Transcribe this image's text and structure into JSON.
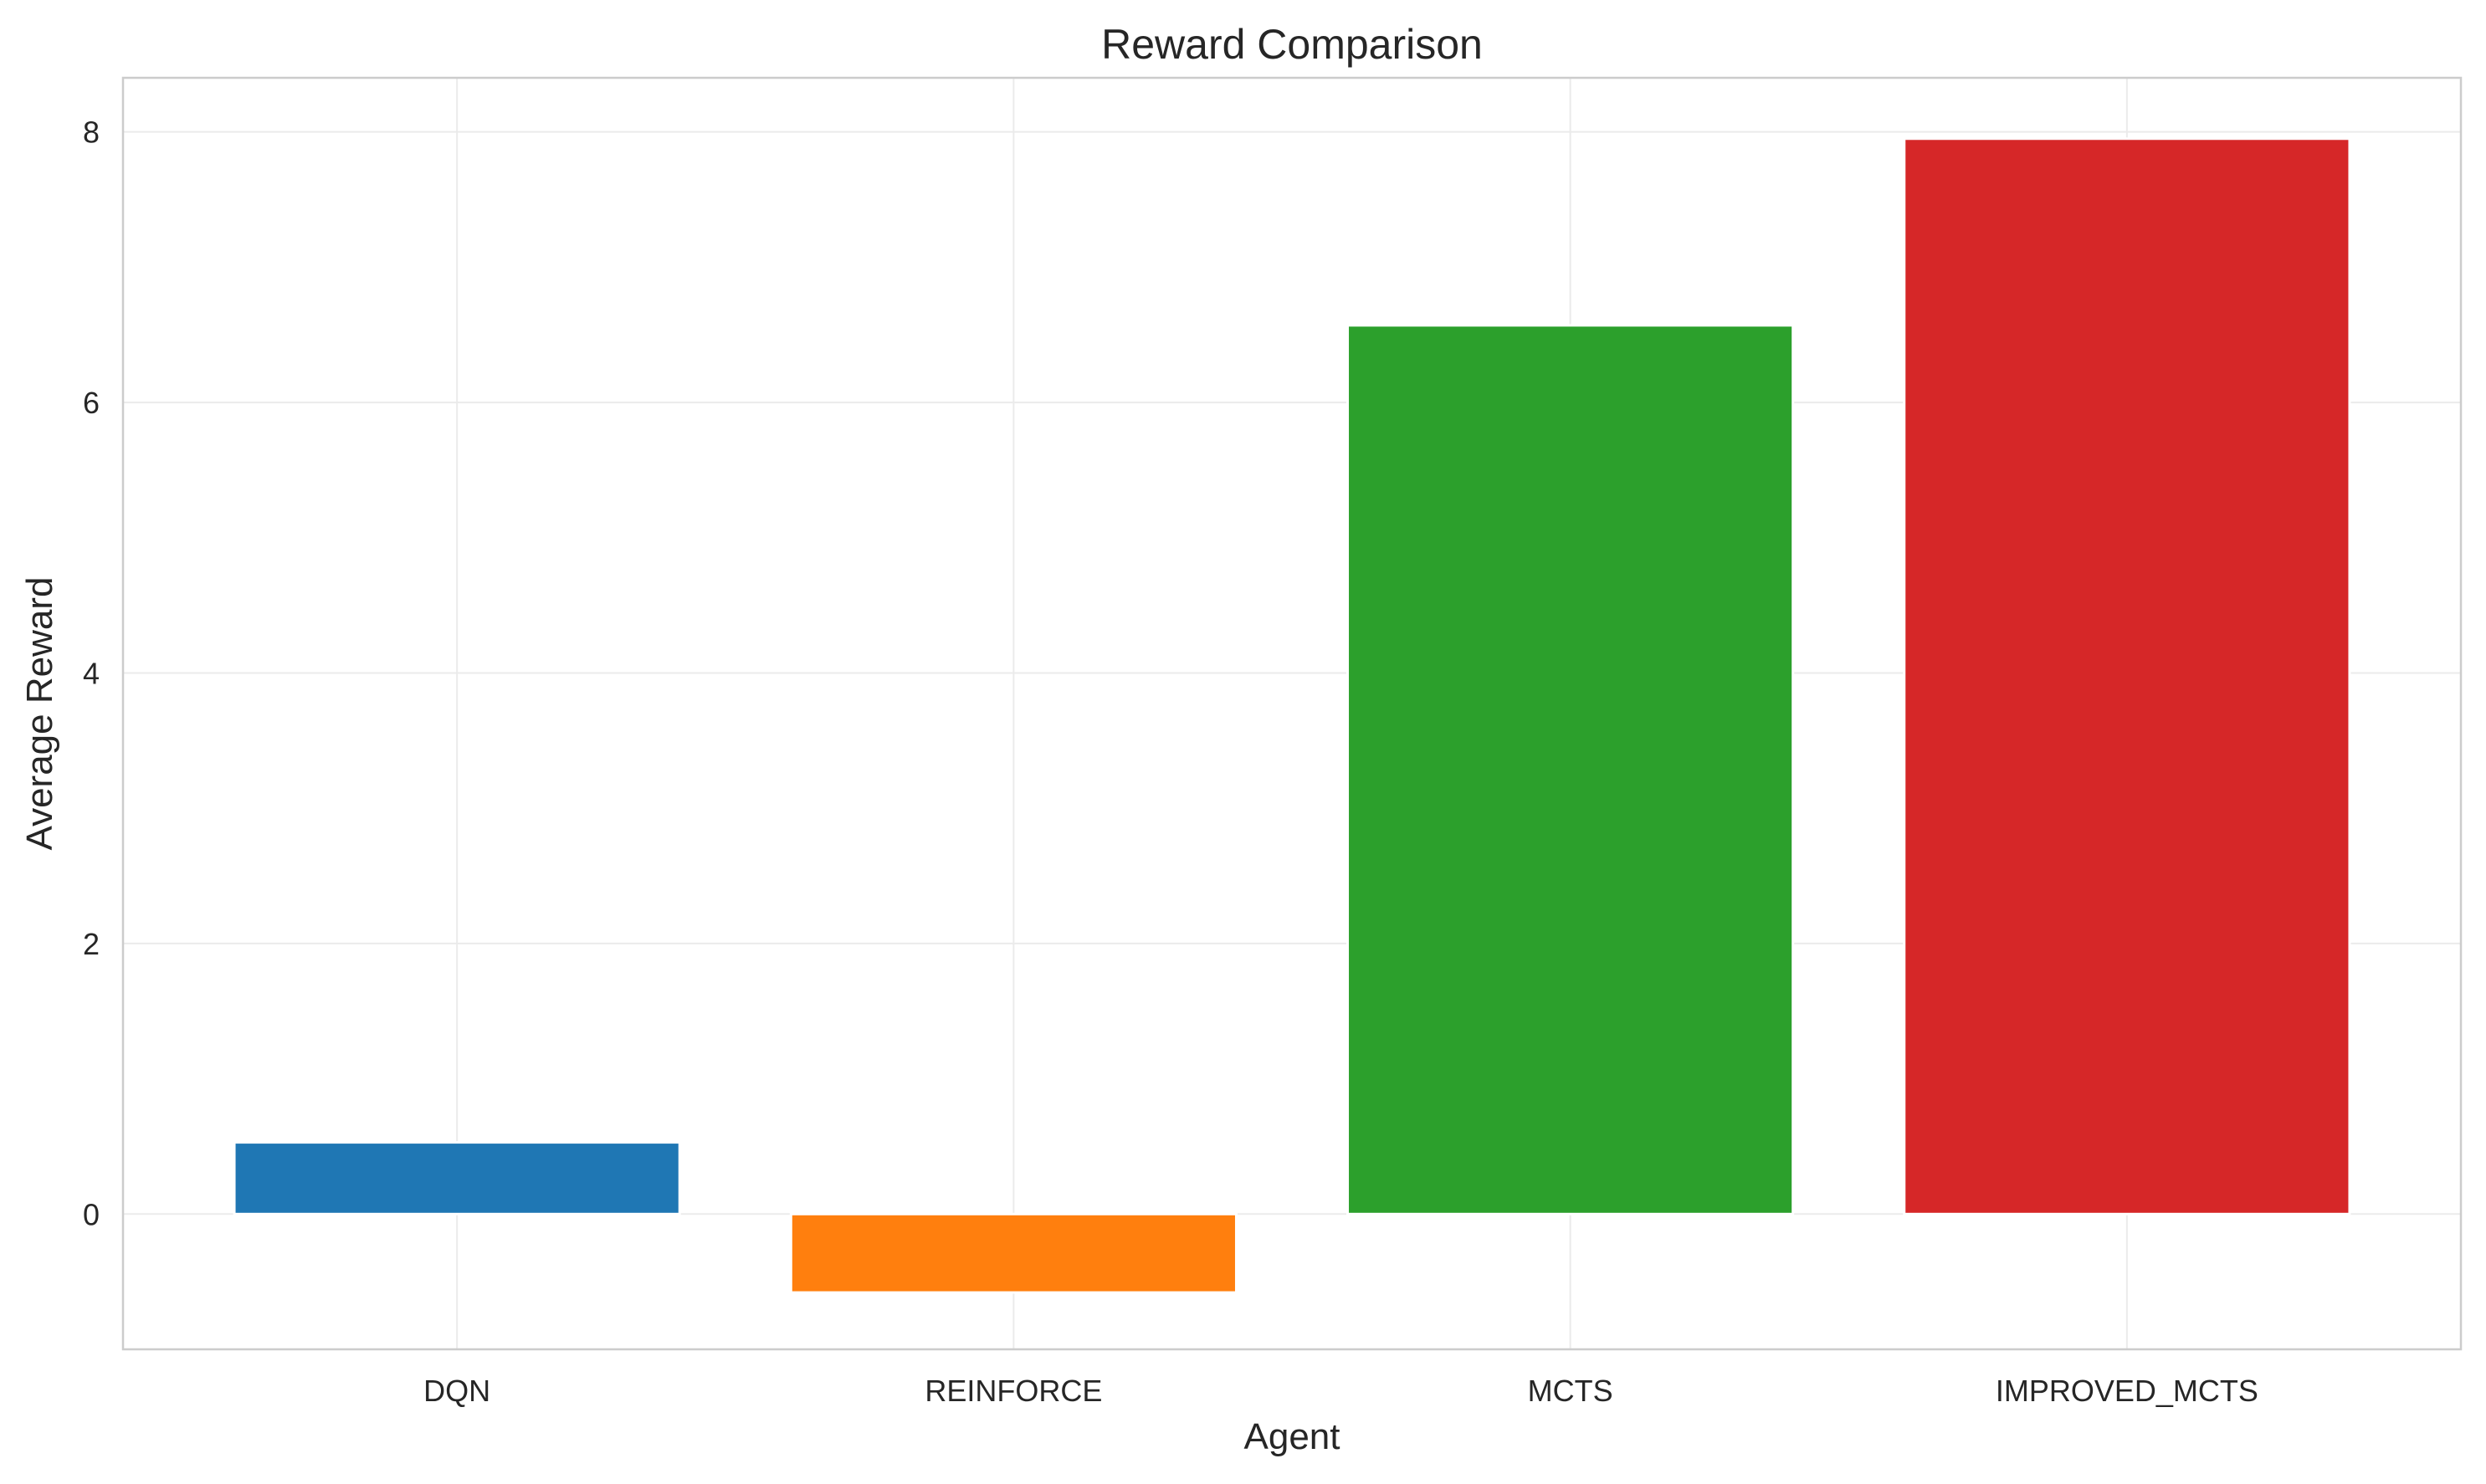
{
  "chart_data": {
    "type": "bar",
    "title": "Reward Comparison",
    "xlabel": "Agent",
    "ylabel": "Average Reward",
    "categories": [
      "DQN",
      "REINFORCE",
      "MCTS",
      "IMPROVED_MCTS"
    ],
    "values": [
      0.53,
      -0.58,
      6.57,
      7.95
    ],
    "colors": [
      "#1f77b4",
      "#ff7f0e",
      "#2ca02c",
      "#d62728"
    ],
    "ylim": [
      -1.0,
      8.4
    ],
    "yticks": [
      0,
      2,
      4,
      6,
      8
    ],
    "grid": true,
    "legend": "none"
  }
}
